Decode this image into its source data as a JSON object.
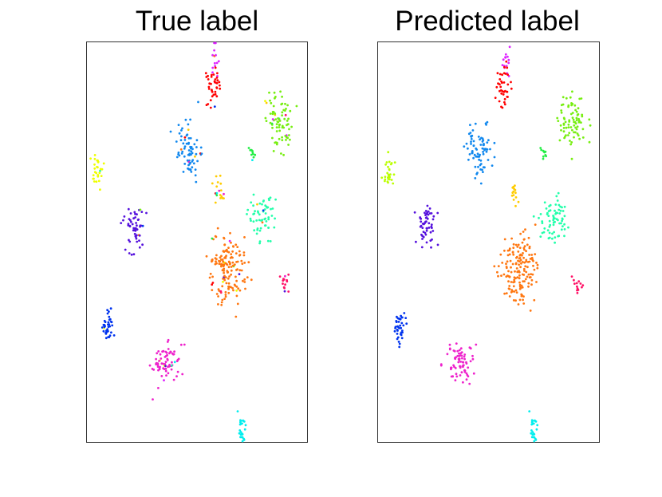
{
  "figure": {
    "background": "#ffffff",
    "frame_color": "#000000"
  },
  "chart_data": [
    {
      "type": "scatter",
      "title": "True label",
      "xlabel": "",
      "ylabel": "",
      "xlim": [
        0,
        100
      ],
      "ylim": [
        0,
        100
      ],
      "axis_ticks": false,
      "grid": false,
      "legend": "none",
      "cluster_palette": {
        "red": "#ff0000",
        "magenta": "#dd22ff",
        "blue_azure": "#1188ee",
        "lime": "#77ee11",
        "yellow": "#eeff00",
        "violet": "#5511dd",
        "spring_green": "#22ffaa",
        "orange": "#ff7711",
        "rose": "#ff1166",
        "royal_blue": "#0033ee",
        "pink": "#ee22cc",
        "cyan": "#00eeee",
        "gold": "#ffcc00",
        "green": "#22ee44"
      },
      "clusters": [
        {
          "cx": 58,
          "cy": 95,
          "sx": 0.8,
          "sy": 2.4,
          "n": 14,
          "color": "#dd22ff",
          "noise": 0.15
        },
        {
          "cx": 57,
          "cy": 89,
          "sx": 1.8,
          "sy": 2.6,
          "n": 38,
          "color": "#ff0000",
          "noise": 0.25
        },
        {
          "cx": 46,
          "cy": 73,
          "sx": 3.0,
          "sy": 3.4,
          "n": 75,
          "color": "#1188ee",
          "noise": 0.2
        },
        {
          "cx": 88,
          "cy": 80,
          "sx": 3.2,
          "sy": 3.6,
          "n": 80,
          "color": "#77ee11",
          "noise": 0.25
        },
        {
          "cx": 5,
          "cy": 68,
          "sx": 1.4,
          "sy": 2.2,
          "n": 28,
          "color": "#eeff00",
          "noise": 0.1
        },
        {
          "cx": 22,
          "cy": 54,
          "sx": 2.2,
          "sy": 3.0,
          "n": 55,
          "color": "#5511dd",
          "noise": 0.1
        },
        {
          "cx": 79,
          "cy": 56,
          "sx": 3.4,
          "sy": 3.4,
          "n": 60,
          "color": "#22ffaa",
          "noise": 0.35
        },
        {
          "cx": 64,
          "cy": 43,
          "sx": 4.5,
          "sy": 4.6,
          "n": 160,
          "color": "#ff7711",
          "noise": 0.3
        },
        {
          "cx": 90,
          "cy": 39,
          "sx": 1.0,
          "sy": 1.2,
          "n": 14,
          "color": "#ff1166",
          "noise": 0.2
        },
        {
          "cx": 10,
          "cy": 29,
          "sx": 1.2,
          "sy": 2.0,
          "n": 38,
          "color": "#0033ee",
          "noise": 0.2
        },
        {
          "cx": 36,
          "cy": 20,
          "sx": 3.2,
          "sy": 2.6,
          "n": 75,
          "color": "#ee22cc",
          "noise": 0.2
        },
        {
          "cx": 70,
          "cy": 3,
          "sx": 1.0,
          "sy": 1.6,
          "n": 25,
          "color": "#00eeee",
          "noise": 0.0
        },
        {
          "cx": 60,
          "cy": 63,
          "sx": 1.2,
          "sy": 1.8,
          "n": 18,
          "color": "#ffcc00",
          "noise": 0.6
        },
        {
          "cx": 75,
          "cy": 72,
          "sx": 1.0,
          "sy": 0.8,
          "n": 10,
          "color": "#22ee44",
          "noise": 0.4
        }
      ]
    },
    {
      "type": "scatter",
      "title": "Predicted label",
      "xlabel": "",
      "ylabel": "",
      "xlim": [
        0,
        100
      ],
      "ylim": [
        0,
        100
      ],
      "axis_ticks": false,
      "grid": false,
      "legend": "none",
      "clusters": [
        {
          "cx": 58,
          "cy": 95,
          "sx": 0.8,
          "sy": 2.4,
          "n": 14,
          "color": "#dd22ff",
          "noise": 0.0
        },
        {
          "cx": 57,
          "cy": 89,
          "sx": 1.8,
          "sy": 2.6,
          "n": 38,
          "color": "#ff0000",
          "noise": 0.0
        },
        {
          "cx": 46,
          "cy": 73,
          "sx": 3.0,
          "sy": 3.4,
          "n": 80,
          "color": "#1188ee",
          "noise": 0.0
        },
        {
          "cx": 88,
          "cy": 80,
          "sx": 3.2,
          "sy": 3.6,
          "n": 80,
          "color": "#77ee11",
          "noise": 0.0
        },
        {
          "cx": 5,
          "cy": 68,
          "sx": 1.4,
          "sy": 2.2,
          "n": 28,
          "color": "#bbff00",
          "noise": 0.0
        },
        {
          "cx": 22,
          "cy": 54,
          "sx": 2.2,
          "sy": 3.0,
          "n": 55,
          "color": "#5511dd",
          "noise": 0.0
        },
        {
          "cx": 80,
          "cy": 56,
          "sx": 3.4,
          "sy": 3.4,
          "n": 70,
          "color": "#22ffaa",
          "noise": 0.0
        },
        {
          "cx": 64,
          "cy": 43,
          "sx": 4.5,
          "sy": 4.6,
          "n": 160,
          "color": "#ff7711",
          "noise": 0.0
        },
        {
          "cx": 90,
          "cy": 39,
          "sx": 1.0,
          "sy": 1.2,
          "n": 14,
          "color": "#ff1166",
          "noise": 0.0
        },
        {
          "cx": 10,
          "cy": 29,
          "sx": 1.2,
          "sy": 2.0,
          "n": 38,
          "color": "#0033ee",
          "noise": 0.0
        },
        {
          "cx": 36,
          "cy": 20,
          "sx": 3.2,
          "sy": 2.6,
          "n": 75,
          "color": "#ee22cc",
          "noise": 0.0
        },
        {
          "cx": 70,
          "cy": 3,
          "sx": 1.0,
          "sy": 1.6,
          "n": 25,
          "color": "#00eeee",
          "noise": 0.0
        },
        {
          "cx": 62,
          "cy": 62,
          "sx": 1.0,
          "sy": 1.2,
          "n": 14,
          "color": "#ffcc00",
          "noise": 0.0
        },
        {
          "cx": 75,
          "cy": 72,
          "sx": 1.0,
          "sy": 0.8,
          "n": 10,
          "color": "#22ee44",
          "noise": 0.0
        }
      ]
    }
  ]
}
